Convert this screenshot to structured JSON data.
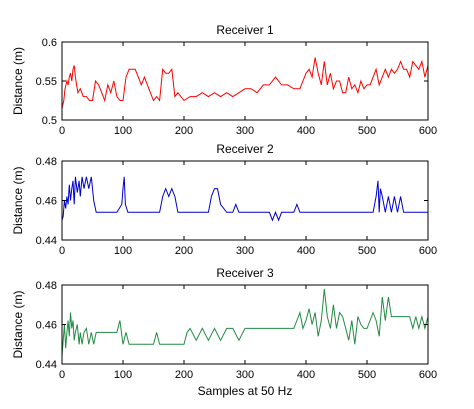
{
  "chart_data": [
    {
      "type": "line",
      "title": "Receiver 1",
      "xlabel": "",
      "ylabel": "Distance (m)",
      "xlim": [
        0,
        600
      ],
      "ylim": [
        0.5,
        0.6
      ],
      "xticks": [
        "0",
        "100",
        "200",
        "300",
        "400",
        "500",
        "600"
      ],
      "yticks": [
        "0.5",
        "0.55",
        "0.6"
      ],
      "grid": false,
      "color": "#ff0000",
      "series": [
        {
          "x": [
            0,
            3,
            5,
            8,
            10,
            12,
            14,
            16,
            18,
            20,
            22,
            24,
            26,
            30,
            35,
            40,
            45,
            50,
            55,
            60,
            65,
            70,
            75,
            80,
            85,
            90,
            95,
            100,
            105,
            110,
            115,
            120,
            125,
            130,
            135,
            140,
            145,
            150,
            155,
            160,
            165,
            170,
            175,
            180,
            185,
            190,
            195,
            200,
            210,
            220,
            230,
            240,
            250,
            260,
            270,
            280,
            290,
            300,
            310,
            320,
            330,
            340,
            350,
            360,
            370,
            380,
            390,
            400,
            405,
            410,
            415,
            420,
            425,
            430,
            435,
            440,
            445,
            450,
            455,
            460,
            465,
            470,
            475,
            480,
            485,
            490,
            495,
            500,
            505,
            510,
            515,
            520,
            525,
            530,
            535,
            540,
            545,
            550,
            555,
            560,
            565,
            570,
            575,
            580,
            585,
            590,
            595,
            600
          ],
          "y": [
            0.515,
            0.525,
            0.54,
            0.55,
            0.545,
            0.555,
            0.56,
            0.55,
            0.565,
            0.57,
            0.555,
            0.545,
            0.535,
            0.54,
            0.53,
            0.53,
            0.525,
            0.525,
            0.55,
            0.545,
            0.535,
            0.525,
            0.545,
            0.535,
            0.55,
            0.53,
            0.525,
            0.525,
            0.555,
            0.565,
            0.565,
            0.565,
            0.555,
            0.545,
            0.555,
            0.545,
            0.535,
            0.525,
            0.53,
            0.525,
            0.565,
            0.56,
            0.56,
            0.565,
            0.53,
            0.535,
            0.53,
            0.525,
            0.53,
            0.53,
            0.535,
            0.53,
            0.535,
            0.53,
            0.535,
            0.53,
            0.535,
            0.54,
            0.54,
            0.535,
            0.545,
            0.545,
            0.555,
            0.545,
            0.545,
            0.54,
            0.54,
            0.56,
            0.565,
            0.555,
            0.58,
            0.56,
            0.545,
            0.575,
            0.545,
            0.56,
            0.54,
            0.55,
            0.55,
            0.535,
            0.535,
            0.555,
            0.54,
            0.545,
            0.535,
            0.55,
            0.54,
            0.545,
            0.545,
            0.555,
            0.565,
            0.545,
            0.555,
            0.565,
            0.555,
            0.565,
            0.56,
            0.565,
            0.575,
            0.565,
            0.565,
            0.555,
            0.575,
            0.57,
            0.565,
            0.575,
            0.555,
            0.57
          ]
        }
      ]
    },
    {
      "type": "line",
      "title": "Receiver 2",
      "xlabel": "",
      "ylabel": "Distance (m)",
      "xlim": [
        0,
        600
      ],
      "ylim": [
        0.44,
        0.48
      ],
      "xticks": [
        "0",
        "100",
        "200",
        "300",
        "400",
        "500",
        "600"
      ],
      "yticks": [
        "0.44",
        "0.46",
        "0.48"
      ],
      "grid": false,
      "color": "#0000cc",
      "series": [
        {
          "x": [
            0,
            2,
            4,
            6,
            8,
            10,
            12,
            14,
            16,
            18,
            20,
            22,
            25,
            28,
            30,
            33,
            36,
            40,
            44,
            48,
            52,
            56,
            60,
            70,
            80,
            90,
            98,
            100,
            102,
            104,
            108,
            112,
            120,
            130,
            140,
            150,
            160,
            165,
            170,
            175,
            180,
            185,
            190,
            200,
            210,
            220,
            230,
            240,
            245,
            250,
            255,
            260,
            270,
            280,
            285,
            290,
            300,
            310,
            320,
            330,
            340,
            345,
            350,
            355,
            360,
            370,
            380,
            385,
            390,
            400,
            410,
            420,
            430,
            440,
            450,
            460,
            470,
            480,
            490,
            500,
            510,
            515,
            518,
            520,
            522,
            525,
            530,
            535,
            540,
            545,
            550,
            555,
            560,
            570,
            580,
            590,
            600
          ],
          "y": [
            0.45,
            0.452,
            0.46,
            0.456,
            0.462,
            0.458,
            0.468,
            0.46,
            0.466,
            0.47,
            0.458,
            0.472,
            0.464,
            0.47,
            0.462,
            0.472,
            0.466,
            0.472,
            0.466,
            0.472,
            0.46,
            0.454,
            0.454,
            0.454,
            0.454,
            0.454,
            0.458,
            0.466,
            0.472,
            0.458,
            0.454,
            0.454,
            0.454,
            0.454,
            0.454,
            0.454,
            0.454,
            0.462,
            0.466,
            0.462,
            0.466,
            0.462,
            0.454,
            0.454,
            0.454,
            0.454,
            0.454,
            0.454,
            0.462,
            0.466,
            0.466,
            0.458,
            0.454,
            0.454,
            0.458,
            0.454,
            0.454,
            0.454,
            0.454,
            0.454,
            0.454,
            0.45,
            0.454,
            0.45,
            0.454,
            0.454,
            0.454,
            0.458,
            0.454,
            0.454,
            0.454,
            0.454,
            0.454,
            0.454,
            0.454,
            0.454,
            0.454,
            0.454,
            0.454,
            0.454,
            0.454,
            0.462,
            0.47,
            0.454,
            0.466,
            0.462,
            0.454,
            0.462,
            0.454,
            0.462,
            0.454,
            0.462,
            0.454,
            0.454,
            0.454,
            0.454,
            0.454
          ]
        }
      ]
    },
    {
      "type": "line",
      "title": "Receiver 3",
      "xlabel": "Samples at 50 Hz",
      "ylabel": "Distance (m)",
      "xlim": [
        0,
        600
      ],
      "ylim": [
        0.44,
        0.48
      ],
      "xticks": [
        "0",
        "100",
        "200",
        "300",
        "400",
        "500",
        "600"
      ],
      "yticks": [
        "0.44",
        "0.46",
        "0.48"
      ],
      "grid": false,
      "color": "#228b44",
      "series": [
        {
          "x": [
            0,
            2,
            4,
            6,
            8,
            10,
            12,
            14,
            16,
            18,
            20,
            22,
            25,
            28,
            30,
            33,
            36,
            40,
            44,
            48,
            52,
            56,
            60,
            70,
            80,
            90,
            95,
            100,
            105,
            110,
            120,
            130,
            140,
            150,
            155,
            160,
            170,
            180,
            190,
            200,
            205,
            210,
            220,
            230,
            240,
            250,
            260,
            270,
            280,
            290,
            300,
            310,
            320,
            330,
            340,
            350,
            360,
            370,
            380,
            385,
            390,
            395,
            400,
            405,
            410,
            415,
            420,
            425,
            430,
            435,
            440,
            445,
            450,
            455,
            460,
            465,
            470,
            475,
            480,
            485,
            490,
            495,
            500,
            505,
            510,
            515,
            520,
            525,
            530,
            535,
            540,
            550,
            560,
            570,
            575,
            580,
            585,
            590,
            595,
            600
          ],
          "y": [
            0.444,
            0.452,
            0.46,
            0.448,
            0.456,
            0.462,
            0.454,
            0.466,
            0.458,
            0.462,
            0.452,
            0.456,
            0.46,
            0.45,
            0.456,
            0.45,
            0.456,
            0.458,
            0.45,
            0.456,
            0.45,
            0.456,
            0.456,
            0.456,
            0.456,
            0.456,
            0.462,
            0.45,
            0.456,
            0.45,
            0.45,
            0.45,
            0.45,
            0.45,
            0.456,
            0.45,
            0.45,
            0.45,
            0.45,
            0.45,
            0.456,
            0.458,
            0.452,
            0.458,
            0.452,
            0.458,
            0.452,
            0.458,
            0.458,
            0.452,
            0.458,
            0.458,
            0.458,
            0.458,
            0.458,
            0.458,
            0.458,
            0.458,
            0.458,
            0.462,
            0.466,
            0.458,
            0.462,
            0.468,
            0.46,
            0.466,
            0.454,
            0.462,
            0.478,
            0.464,
            0.458,
            0.47,
            0.458,
            0.466,
            0.464,
            0.458,
            0.452,
            0.462,
            0.45,
            0.464,
            0.46,
            0.458,
            0.458,
            0.462,
            0.466,
            0.462,
            0.454,
            0.474,
            0.462,
            0.474,
            0.464,
            0.464,
            0.464,
            0.464,
            0.458,
            0.464,
            0.458,
            0.464,
            0.458,
            0.464
          ]
        }
      ]
    }
  ]
}
